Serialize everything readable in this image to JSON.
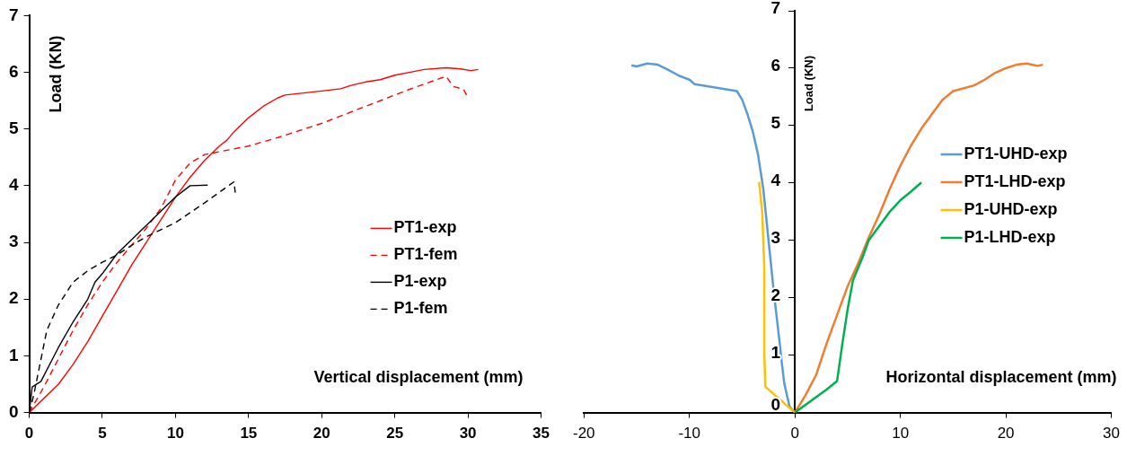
{
  "chart_data": [
    {
      "type": "line",
      "xlabel": "Vertical displacement (mm)",
      "ylabel": "Load (KN)",
      "xlim": [
        0,
        35
      ],
      "xticks": [
        0,
        5,
        10,
        15,
        20,
        25,
        30,
        35
      ],
      "ylim": [
        0,
        7
      ],
      "yticks": [
        0,
        1,
        2,
        3,
        4,
        5,
        6,
        7
      ],
      "grid": false,
      "legend": "right",
      "marker": "none",
      "series": [
        {
          "name": "PT1-exp",
          "color": "#ff0000",
          "line_style": "solid",
          "x": [
            0,
            2,
            3,
            4,
            5,
            6,
            7,
            8,
            9,
            10,
            11,
            12,
            13,
            13.5,
            14,
            15,
            16,
            17,
            17.5,
            20,
            21.3,
            22,
            23,
            24,
            25,
            26,
            27,
            28.5,
            29.5,
            30.2,
            30.7
          ],
          "values": [
            0,
            0.5,
            0.85,
            1.25,
            1.7,
            2.15,
            2.6,
            3.0,
            3.4,
            3.8,
            4.15,
            4.45,
            4.7,
            4.8,
            4.95,
            5.2,
            5.4,
            5.55,
            5.6,
            5.67,
            5.71,
            5.77,
            5.83,
            5.87,
            5.95,
            6.0,
            6.05,
            6.08,
            6.06,
            6.03,
            6.05
          ]
        },
        {
          "name": "PT1-fem",
          "color": "#ff0000",
          "line_style": "dashed",
          "x": [
            0,
            1,
            2,
            3,
            4,
            5,
            6,
            7,
            8,
            9,
            10,
            11,
            12,
            13,
            15,
            17,
            20,
            23,
            26,
            28.5,
            29,
            29.7,
            30
          ],
          "values": [
            0,
            0.45,
            0.95,
            1.45,
            1.9,
            2.3,
            2.65,
            2.95,
            3.25,
            3.6,
            4.1,
            4.4,
            4.55,
            4.6,
            4.7,
            4.85,
            5.1,
            5.4,
            5.7,
            5.93,
            5.75,
            5.7,
            5.55
          ]
        },
        {
          "name": "P1-exp",
          "color": "#000000",
          "line_style": "solid",
          "x": [
            0,
            0.2,
            0.8,
            1.5,
            2,
            3,
            4,
            4.5,
            5,
            6,
            7,
            8,
            9,
            10,
            11,
            12.2
          ],
          "values": [
            0,
            0.45,
            0.55,
            0.9,
            1.15,
            1.6,
            2.0,
            2.3,
            2.45,
            2.8,
            3.05,
            3.3,
            3.55,
            3.8,
            4.0,
            4.01
          ]
        },
        {
          "name": "P1-fem",
          "color": "#000000",
          "line_style": "dashed",
          "x": [
            0,
            0.3,
            1.2,
            2,
            3,
            4,
            5,
            6,
            7,
            8,
            10,
            12,
            14,
            14.1
          ],
          "values": [
            0,
            0.3,
            1.45,
            1.9,
            2.3,
            2.5,
            2.65,
            2.78,
            2.95,
            3.1,
            3.35,
            3.7,
            4.07,
            3.85
          ]
        }
      ]
    },
    {
      "type": "line",
      "xlabel": "Horizontal displacement (mm)",
      "ylabel": "Load (KN)",
      "xlim": [
        -20,
        30
      ],
      "xticks": [
        -20,
        -10,
        0,
        10,
        20,
        30
      ],
      "ylim": [
        0,
        7
      ],
      "yticks": [
        0,
        1,
        2,
        3,
        4,
        5,
        6,
        7
      ],
      "grid": false,
      "legend": "right",
      "marker": "none",
      "series": [
        {
          "name": "PT1-UHD-exp",
          "color": "#5b9bd5",
          "line_style": "solid",
          "x": [
            -15.5,
            -15,
            -14,
            -13,
            -12,
            -11,
            -10,
            -9.5,
            -5.5,
            -5,
            -4.5,
            -4,
            -3.5,
            -3,
            -2.5,
            -2,
            -1.5,
            -1.2,
            -1,
            -0.5,
            0
          ],
          "values": [
            6.05,
            6.03,
            6.08,
            6.06,
            5.97,
            5.87,
            5.8,
            5.72,
            5.6,
            5.45,
            5.2,
            4.9,
            4.5,
            3.9,
            3.0,
            2.1,
            1.3,
            0.8,
            0.5,
            0.1,
            0
          ]
        },
        {
          "name": "PT1-LHD-exp",
          "color": "#ed7d31",
          "line_style": "solid",
          "x": [
            0,
            1,
            2,
            3,
            4,
            5,
            6,
            7,
            8,
            9,
            10,
            11,
            12,
            13,
            14,
            15,
            17,
            18,
            19,
            20,
            21,
            22,
            23,
            23.5
          ],
          "values": [
            0,
            0.3,
            0.65,
            1.2,
            1.7,
            2.2,
            2.6,
            3.05,
            3.45,
            3.9,
            4.3,
            4.65,
            4.95,
            5.2,
            5.45,
            5.6,
            5.7,
            5.8,
            5.92,
            6.0,
            6.06,
            6.08,
            6.04,
            6.06
          ]
        },
        {
          "name": "P1-UHD-exp",
          "color": "#ffc000",
          "line_style": "solid",
          "x": [
            -3.4,
            -3.1,
            -2.9,
            -2.9,
            -2.8,
            0
          ],
          "values": [
            4.02,
            3.5,
            2.5,
            1.0,
            0.45,
            0
          ]
        },
        {
          "name": "P1-LHD-exp",
          "color": "#00b050",
          "line_style": "solid",
          "x": [
            0,
            3,
            4,
            4.5,
            5,
            5.5,
            6.4,
            7,
            8,
            9,
            10,
            11,
            12
          ],
          "values": [
            0,
            0.4,
            0.55,
            1.2,
            1.8,
            2.3,
            2.7,
            3.0,
            3.25,
            3.5,
            3.7,
            3.85,
            4.01
          ]
        }
      ]
    }
  ]
}
